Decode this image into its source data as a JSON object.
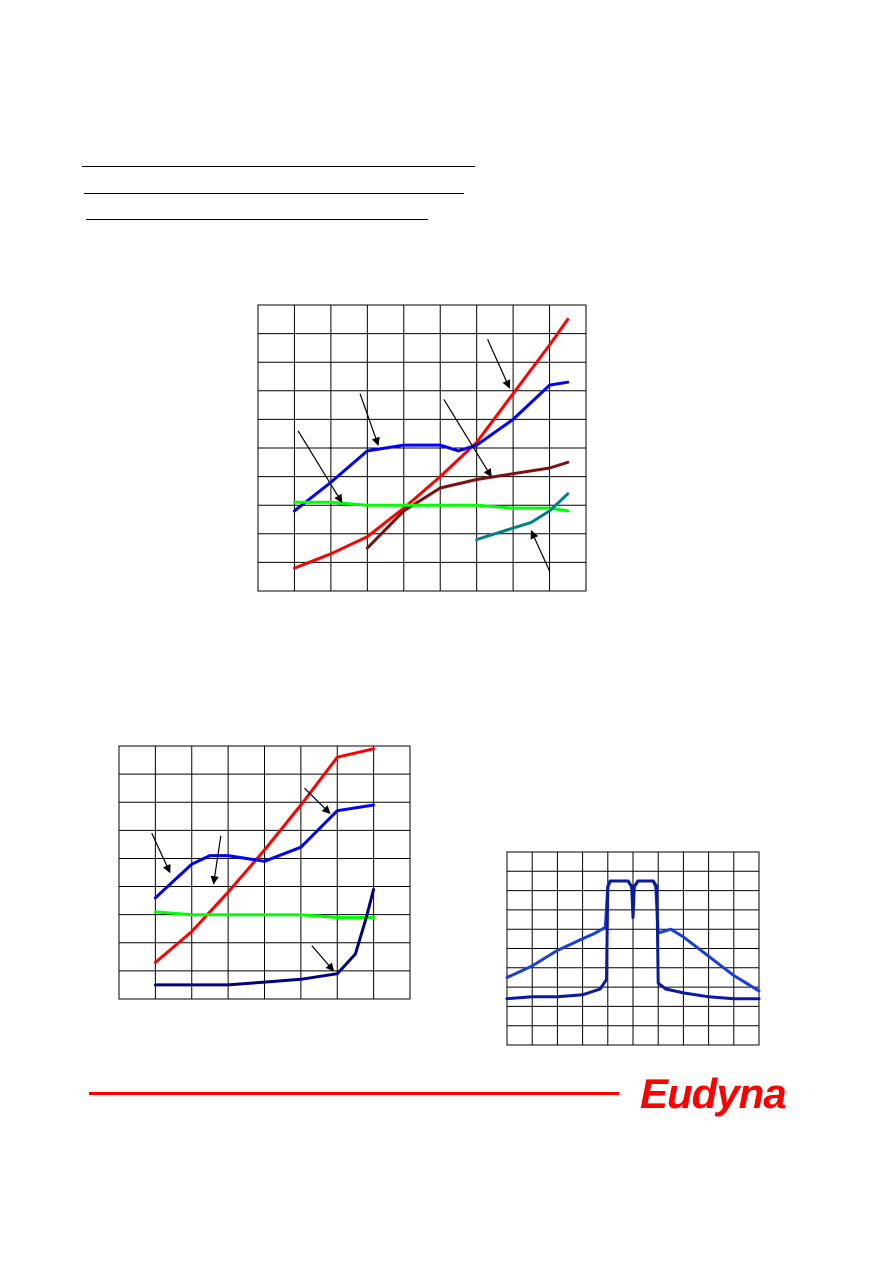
{
  "header": {
    "rules": [
      "underline-1",
      "underline-2",
      "underline-3"
    ]
  },
  "colors": {
    "red": "#ff0000",
    "blue": "#0000ff",
    "green": "#00ff00",
    "maroon": "#7b1010",
    "teal": "#008080",
    "navy": "#000080",
    "spectrum_blue": "#1a3fd6",
    "spectrum_navy": "#0a1a9c",
    "grid": "#000000",
    "footer_rule": "#ff0000",
    "logo": "#ff0000"
  },
  "chart_data": [
    {
      "type": "line",
      "xlim": [
        0,
        9
      ],
      "ylim": [
        0,
        10
      ],
      "grid": true,
      "xdiv": 9,
      "ydiv": 10,
      "series": [
        {
          "color": "red",
          "x": [
            1,
            2,
            3,
            4,
            5,
            6,
            7,
            8,
            8.5
          ],
          "y": [
            0.8,
            1.3,
            1.9,
            2.9,
            4.0,
            5.2,
            6.9,
            8.6,
            9.5
          ]
        },
        {
          "color": "blue",
          "x": [
            1,
            2,
            3,
            4,
            5,
            5.5,
            6,
            7,
            8,
            8.5
          ],
          "y": [
            2.8,
            3.8,
            4.9,
            5.1,
            5.1,
            4.9,
            5.1,
            6.0,
            7.2,
            7.3
          ]
        },
        {
          "color": "maroon",
          "x": [
            3,
            4,
            5,
            6,
            7,
            8,
            8.5
          ],
          "y": [
            1.5,
            2.8,
            3.6,
            3.9,
            4.1,
            4.3,
            4.5
          ]
        },
        {
          "color": "green",
          "x": [
            1,
            2,
            3,
            4,
            5,
            6,
            7,
            8,
            8.5
          ],
          "y": [
            3.1,
            3.1,
            3.0,
            3.0,
            3.0,
            3.0,
            2.9,
            2.9,
            2.8
          ]
        },
        {
          "color": "teal",
          "x": [
            6,
            6.5,
            7,
            7.5,
            8,
            8.5
          ],
          "y": [
            1.8,
            2.0,
            2.2,
            2.4,
            2.8,
            3.4
          ]
        }
      ],
      "arrows": [
        {
          "from": [
            6.3,
            8.8
          ],
          "to": [
            6.9,
            7.1
          ]
        },
        {
          "from": [
            2.8,
            6.9
          ],
          "to": [
            3.3,
            5.1
          ]
        },
        {
          "from": [
            1.1,
            5.6
          ],
          "to": [
            2.3,
            3.1
          ]
        },
        {
          "from": [
            5.1,
            6.7
          ],
          "to": [
            6.4,
            4.0
          ]
        },
        {
          "from": [
            8.0,
            0.7
          ],
          "to": [
            7.5,
            2.1
          ]
        }
      ]
    },
    {
      "type": "line",
      "xlim": [
        0,
        8
      ],
      "ylim": [
        0,
        9
      ],
      "grid": true,
      "xdiv": 8,
      "ydiv": 9,
      "series": [
        {
          "color": "red",
          "x": [
            1,
            2,
            3,
            4,
            5,
            6,
            7
          ],
          "y": [
            1.3,
            2.4,
            3.8,
            5.3,
            6.9,
            8.6,
            8.9
          ]
        },
        {
          "color": "blue",
          "x": [
            1,
            2,
            2.5,
            3,
            4,
            5,
            6,
            7
          ],
          "y": [
            3.6,
            4.8,
            5.1,
            5.1,
            4.9,
            5.4,
            6.7,
            6.9
          ]
        },
        {
          "color": "green",
          "x": [
            1,
            2,
            3,
            4,
            5,
            6,
            7
          ],
          "y": [
            3.1,
            3.0,
            3.0,
            3.0,
            3.0,
            2.9,
            2.9
          ]
        },
        {
          "color": "navy",
          "x": [
            1,
            2,
            3,
            4,
            5,
            6,
            6.5,
            6.8,
            7
          ],
          "y": [
            0.5,
            0.5,
            0.5,
            0.6,
            0.7,
            0.9,
            1.6,
            2.9,
            3.9
          ]
        }
      ],
      "arrows": [
        {
          "from": [
            5.1,
            7.5
          ],
          "to": [
            5.8,
            6.6
          ]
        },
        {
          "from": [
            0.9,
            5.9
          ],
          "to": [
            1.4,
            4.5
          ]
        },
        {
          "from": [
            2.8,
            5.8
          ],
          "to": [
            2.6,
            4.1
          ]
        },
        {
          "from": [
            5.3,
            1.9
          ],
          "to": [
            5.9,
            1.0
          ]
        }
      ]
    },
    {
      "type": "line",
      "xlim": [
        0,
        10
      ],
      "ylim": [
        0,
        10
      ],
      "grid": true,
      "xdiv": 10,
      "ydiv": 10,
      "series": [
        {
          "color": "spectrum_blue",
          "x": [
            0,
            0.5,
            1,
            1.5,
            2,
            2.5,
            3,
            3.5,
            3.9,
            4.0,
            4.1,
            4.5,
            4.8,
            4.95,
            5.0,
            5.05,
            5.2,
            5.5,
            5.8,
            5.9,
            6.0,
            6.5,
            7,
            7.5,
            8,
            8.5,
            9,
            9.5,
            10
          ],
          "y": [
            3.5,
            3.8,
            4.1,
            4.5,
            4.9,
            5.2,
            5.5,
            5.8,
            6.1,
            8.2,
            8.5,
            8.5,
            8.5,
            8.2,
            7.8,
            8.2,
            8.5,
            8.5,
            8.5,
            8.2,
            5.8,
            6.0,
            5.6,
            5.1,
            4.6,
            4.1,
            3.6,
            3.2,
            2.8
          ]
        },
        {
          "color": "spectrum_navy",
          "x": [
            0,
            1,
            2,
            3,
            3.7,
            3.95,
            4.0,
            4.1,
            4.5,
            4.8,
            4.95,
            5.0,
            5.05,
            5.2,
            5.5,
            5.8,
            5.95,
            6.0,
            6.3,
            7,
            8,
            9,
            10
          ],
          "y": [
            2.4,
            2.5,
            2.5,
            2.6,
            2.9,
            3.4,
            8.2,
            8.5,
            8.5,
            8.5,
            8.2,
            6.6,
            8.2,
            8.5,
            8.5,
            8.5,
            8.2,
            3.2,
            2.9,
            2.7,
            2.5,
            2.4,
            2.4
          ]
        }
      ]
    }
  ],
  "logo": {
    "text": "Eudyna"
  }
}
